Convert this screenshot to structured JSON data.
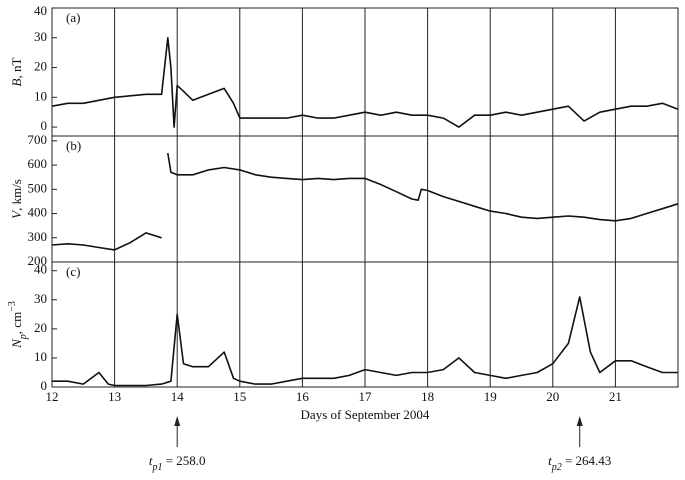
{
  "chart_data": [
    {
      "type": "line",
      "panel_label": "(a)",
      "ylabel": [
        {
          "text": "B",
          "italic": true
        },
        {
          "text": ", nT"
        }
      ],
      "xlim": [
        12,
        22
      ],
      "xticks": [
        13,
        14,
        15,
        16,
        17,
        18,
        19,
        20,
        21
      ],
      "ylim": [
        -3,
        40
      ],
      "yticks": [
        0,
        10,
        20,
        30,
        40
      ],
      "x": [
        12,
        12.25,
        12.5,
        12.75,
        13,
        13.25,
        13.5,
        13.75,
        13.85,
        13.9,
        13.95,
        14,
        14.1,
        14.25,
        14.5,
        14.75,
        14.9,
        15,
        15.25,
        15.5,
        15.75,
        16,
        16.25,
        16.5,
        16.75,
        17,
        17.25,
        17.5,
        17.75,
        18,
        18.25,
        18.5,
        18.75,
        19,
        19.25,
        19.5,
        19.75,
        20,
        20.25,
        20.5,
        20.75,
        21,
        21.25,
        21.5,
        21.75,
        22
      ],
      "series": [
        {
          "color": "#111111",
          "values": [
            7,
            8,
            8,
            9,
            10,
            10.5,
            11,
            11,
            30,
            20,
            0,
            14,
            12,
            9,
            11,
            13,
            8,
            3,
            3,
            3,
            3,
            4,
            3,
            3,
            4,
            5,
            4,
            5,
            4,
            4,
            3,
            0,
            4,
            4,
            5,
            4,
            5,
            6,
            7,
            2,
            5,
            6,
            7,
            7,
            8,
            6
          ]
        }
      ]
    },
    {
      "type": "line",
      "panel_label": "(b)",
      "ylabel": [
        {
          "text": "V",
          "italic": true
        },
        {
          "text": ", km/s"
        }
      ],
      "xlim": [
        12,
        22
      ],
      "xticks": [
        13,
        14,
        15,
        16,
        17,
        18,
        19,
        20,
        21
      ],
      "ylim": [
        200,
        720
      ],
      "yticks": [
        200,
        300,
        400,
        500,
        600,
        700
      ],
      "x": [
        12,
        12.25,
        12.5,
        12.75,
        13,
        13.25,
        13.5,
        13.75,
        13.8,
        13.85,
        13.9,
        14,
        14.25,
        14.5,
        14.75,
        15,
        15.25,
        15.5,
        15.75,
        16,
        16.25,
        16.5,
        16.75,
        17,
        17.25,
        17.5,
        17.75,
        17.85,
        17.9,
        18,
        18.25,
        18.5,
        18.75,
        19,
        19.25,
        19.5,
        19.75,
        20,
        20.25,
        20.5,
        20.75,
        21,
        21.25,
        21.5,
        21.75,
        22
      ],
      "series": [
        {
          "color": "#111111",
          "values": [
            270,
            275,
            270,
            260,
            250,
            280,
            320,
            300,
            null,
            650,
            570,
            560,
            560,
            580,
            590,
            580,
            560,
            550,
            545,
            540,
            545,
            540,
            545,
            545,
            520,
            490,
            460,
            455,
            500,
            495,
            470,
            450,
            430,
            410,
            400,
            385,
            380,
            385,
            390,
            385,
            375,
            370,
            380,
            400,
            420,
            440
          ]
        }
      ]
    },
    {
      "type": "line",
      "panel_label": "(c)",
      "ylabel": [
        {
          "text": "N",
          "italic": true
        },
        {
          "text": "p",
          "italic": true,
          "sub": true
        },
        {
          "text": ", cm"
        },
        {
          "text": "−3",
          "sup": true
        }
      ],
      "xlabel": "Days of September 2004",
      "xlim": [
        12,
        22
      ],
      "xticks": [
        12,
        13,
        14,
        15,
        16,
        17,
        18,
        19,
        20,
        21
      ],
      "ylim": [
        0,
        43
      ],
      "yticks": [
        0,
        10,
        20,
        30,
        40
      ],
      "x": [
        12,
        12.25,
        12.5,
        12.75,
        12.9,
        13,
        13.25,
        13.5,
        13.75,
        13.9,
        14,
        14.1,
        14.25,
        14.5,
        14.75,
        14.9,
        15,
        15.25,
        15.5,
        15.75,
        16,
        16.25,
        16.5,
        16.75,
        17,
        17.25,
        17.5,
        17.75,
        18,
        18.25,
        18.5,
        18.75,
        19,
        19.25,
        19.5,
        19.75,
        20,
        20.25,
        20.43,
        20.6,
        20.75,
        21,
        21.25,
        21.5,
        21.75,
        22
      ],
      "series": [
        {
          "color": "#111111",
          "values": [
            2,
            2,
            1,
            5,
            1,
            0.5,
            0.5,
            0.5,
            1,
            2,
            25,
            8,
            7,
            7,
            12,
            3,
            2,
            1,
            1,
            2,
            3,
            3,
            3,
            4,
            6,
            5,
            4,
            5,
            5,
            6,
            10,
            5,
            4,
            3,
            4,
            5,
            8,
            15,
            31,
            12,
            5,
            9,
            9,
            7,
            5,
            5
          ]
        }
      ],
      "annotations": [
        {
          "x": 14,
          "t": "t",
          "sub": "p1",
          "text": " = 258.0"
        },
        {
          "x": 20.43,
          "t": "t",
          "sub": "p2",
          "text": " = 264.43"
        }
      ]
    }
  ]
}
